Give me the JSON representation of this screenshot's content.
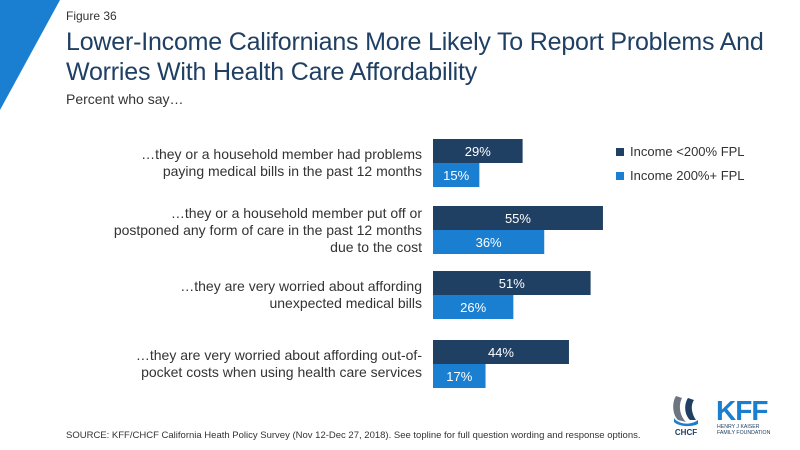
{
  "figure_label": "Figure 36",
  "title": "Lower-Income Californians More Likely To Report Problems And Worries With Health Care Affordability",
  "subtitle": "Percent who say…",
  "source": "SOURCE: KFF/CHCF California Heath Policy Survey (Nov 12-Dec 27, 2018). See topline for full question wording and response options.",
  "logos": {
    "chcf": "CHCF",
    "kff": "KFF",
    "kff_sub1": "HENRY J KAISER",
    "kff_sub2": "FAMILY FOUNDATION"
  },
  "colors": {
    "low_income": "#1f3f63",
    "high_income": "#1a7fd0",
    "accent": "#1a7fd0"
  },
  "chart_data": {
    "type": "bar",
    "orientation": "horizontal",
    "categories": [
      "…they or a household member had problems paying medical bills in the past 12 months",
      "…they or a household member put off or postponed any form of care in the past 12 months due to the cost",
      "…they are very worried about affording unexpected medical bills",
      "…they are very worried about affording out-of-pocket costs when using health care services"
    ],
    "category_lines": [
      [
        "…they or a household member had problems",
        "paying medical bills in the past 12 months"
      ],
      [
        "…they or a household member put off or",
        "postponed any form of care in the past 12 months",
        "due to the cost"
      ],
      [
        "…they are very worried about affording",
        "unexpected medical bills"
      ],
      [
        "…they are very worried about affording out-of-",
        "pocket costs when using health care services"
      ]
    ],
    "series": [
      {
        "name": "Income <200% FPL",
        "values": [
          29,
          55,
          51,
          44
        ],
        "labels": [
          "29%",
          "55%",
          "51%",
          "44%"
        ]
      },
      {
        "name": "Income 200%+ FPL",
        "values": [
          15,
          36,
          26,
          17
        ],
        "labels": [
          "15%",
          "36%",
          "26%",
          "17%"
        ]
      }
    ],
    "xlim": [
      0,
      100
    ],
    "legend_position": "top-right",
    "grid": false
  }
}
